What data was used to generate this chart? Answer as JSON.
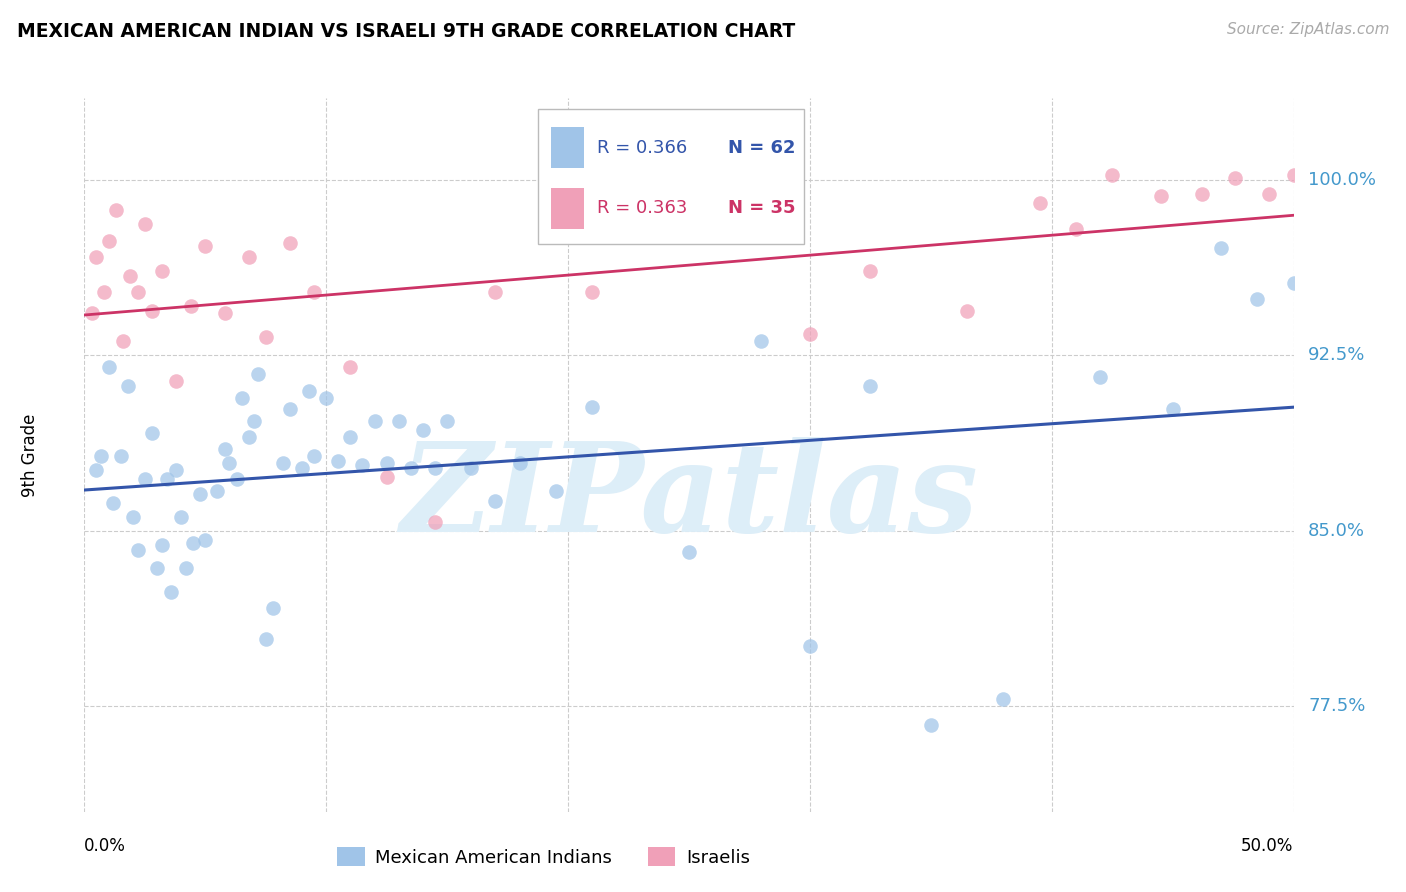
{
  "title": "MEXICAN AMERICAN INDIAN VS ISRAELI 9TH GRADE CORRELATION CHART",
  "source": "Source: ZipAtlas.com",
  "ylabel": "9th Grade",
  "yticks": [
    0.775,
    0.85,
    0.925,
    1.0
  ],
  "ytick_labels": [
    "77.5%",
    "85.0%",
    "92.5%",
    "100.0%"
  ],
  "xlim": [
    0.0,
    0.5
  ],
  "ylim": [
    0.73,
    1.035
  ],
  "blue_R": 0.366,
  "blue_N": 62,
  "pink_R": 0.363,
  "pink_N": 35,
  "blue_color": "#a0c4e8",
  "pink_color": "#f0a0b8",
  "blue_line_color": "#3355aa",
  "pink_line_color": "#cc3366",
  "watermark_text": "ZIPatlas",
  "watermark_color": "#ddeef8",
  "legend_labels": [
    "Mexican American Indians",
    "Israelis"
  ],
  "blue_scatter_x": [
    0.005,
    0.007,
    0.01,
    0.012,
    0.015,
    0.018,
    0.02,
    0.022,
    0.025,
    0.028,
    0.03,
    0.032,
    0.034,
    0.036,
    0.038,
    0.04,
    0.042,
    0.045,
    0.048,
    0.05,
    0.055,
    0.058,
    0.06,
    0.063,
    0.065,
    0.068,
    0.07,
    0.072,
    0.075,
    0.078,
    0.082,
    0.085,
    0.09,
    0.093,
    0.095,
    0.1,
    0.105,
    0.11,
    0.115,
    0.12,
    0.125,
    0.13,
    0.135,
    0.14,
    0.145,
    0.15,
    0.16,
    0.17,
    0.18,
    0.195,
    0.21,
    0.25,
    0.28,
    0.3,
    0.325,
    0.35,
    0.38,
    0.42,
    0.45,
    0.47,
    0.485,
    0.5
  ],
  "blue_scatter_y": [
    0.876,
    0.882,
    0.92,
    0.862,
    0.882,
    0.912,
    0.856,
    0.842,
    0.872,
    0.892,
    0.834,
    0.844,
    0.872,
    0.824,
    0.876,
    0.856,
    0.834,
    0.845,
    0.866,
    0.846,
    0.867,
    0.885,
    0.879,
    0.872,
    0.907,
    0.89,
    0.897,
    0.917,
    0.804,
    0.817,
    0.879,
    0.902,
    0.877,
    0.91,
    0.882,
    0.907,
    0.88,
    0.89,
    0.878,
    0.897,
    0.879,
    0.897,
    0.877,
    0.893,
    0.877,
    0.897,
    0.877,
    0.863,
    0.879,
    0.867,
    0.903,
    0.841,
    0.931,
    0.801,
    0.912,
    0.767,
    0.778,
    0.916,
    0.902,
    0.971,
    0.949,
    0.956
  ],
  "pink_scatter_x": [
    0.003,
    0.005,
    0.008,
    0.01,
    0.013,
    0.016,
    0.019,
    0.022,
    0.025,
    0.028,
    0.032,
    0.038,
    0.044,
    0.05,
    0.058,
    0.068,
    0.075,
    0.085,
    0.095,
    0.11,
    0.125,
    0.145,
    0.17,
    0.21,
    0.3,
    0.325,
    0.365,
    0.395,
    0.41,
    0.425,
    0.445,
    0.462,
    0.476,
    0.49,
    0.5
  ],
  "pink_scatter_y": [
    0.943,
    0.967,
    0.952,
    0.974,
    0.987,
    0.931,
    0.959,
    0.952,
    0.981,
    0.944,
    0.961,
    0.914,
    0.946,
    0.972,
    0.943,
    0.967,
    0.933,
    0.973,
    0.952,
    0.92,
    0.873,
    0.854,
    0.952,
    0.952,
    0.934,
    0.961,
    0.944,
    0.99,
    0.979,
    1.002,
    0.993,
    0.994,
    1.001,
    0.994,
    1.002
  ]
}
